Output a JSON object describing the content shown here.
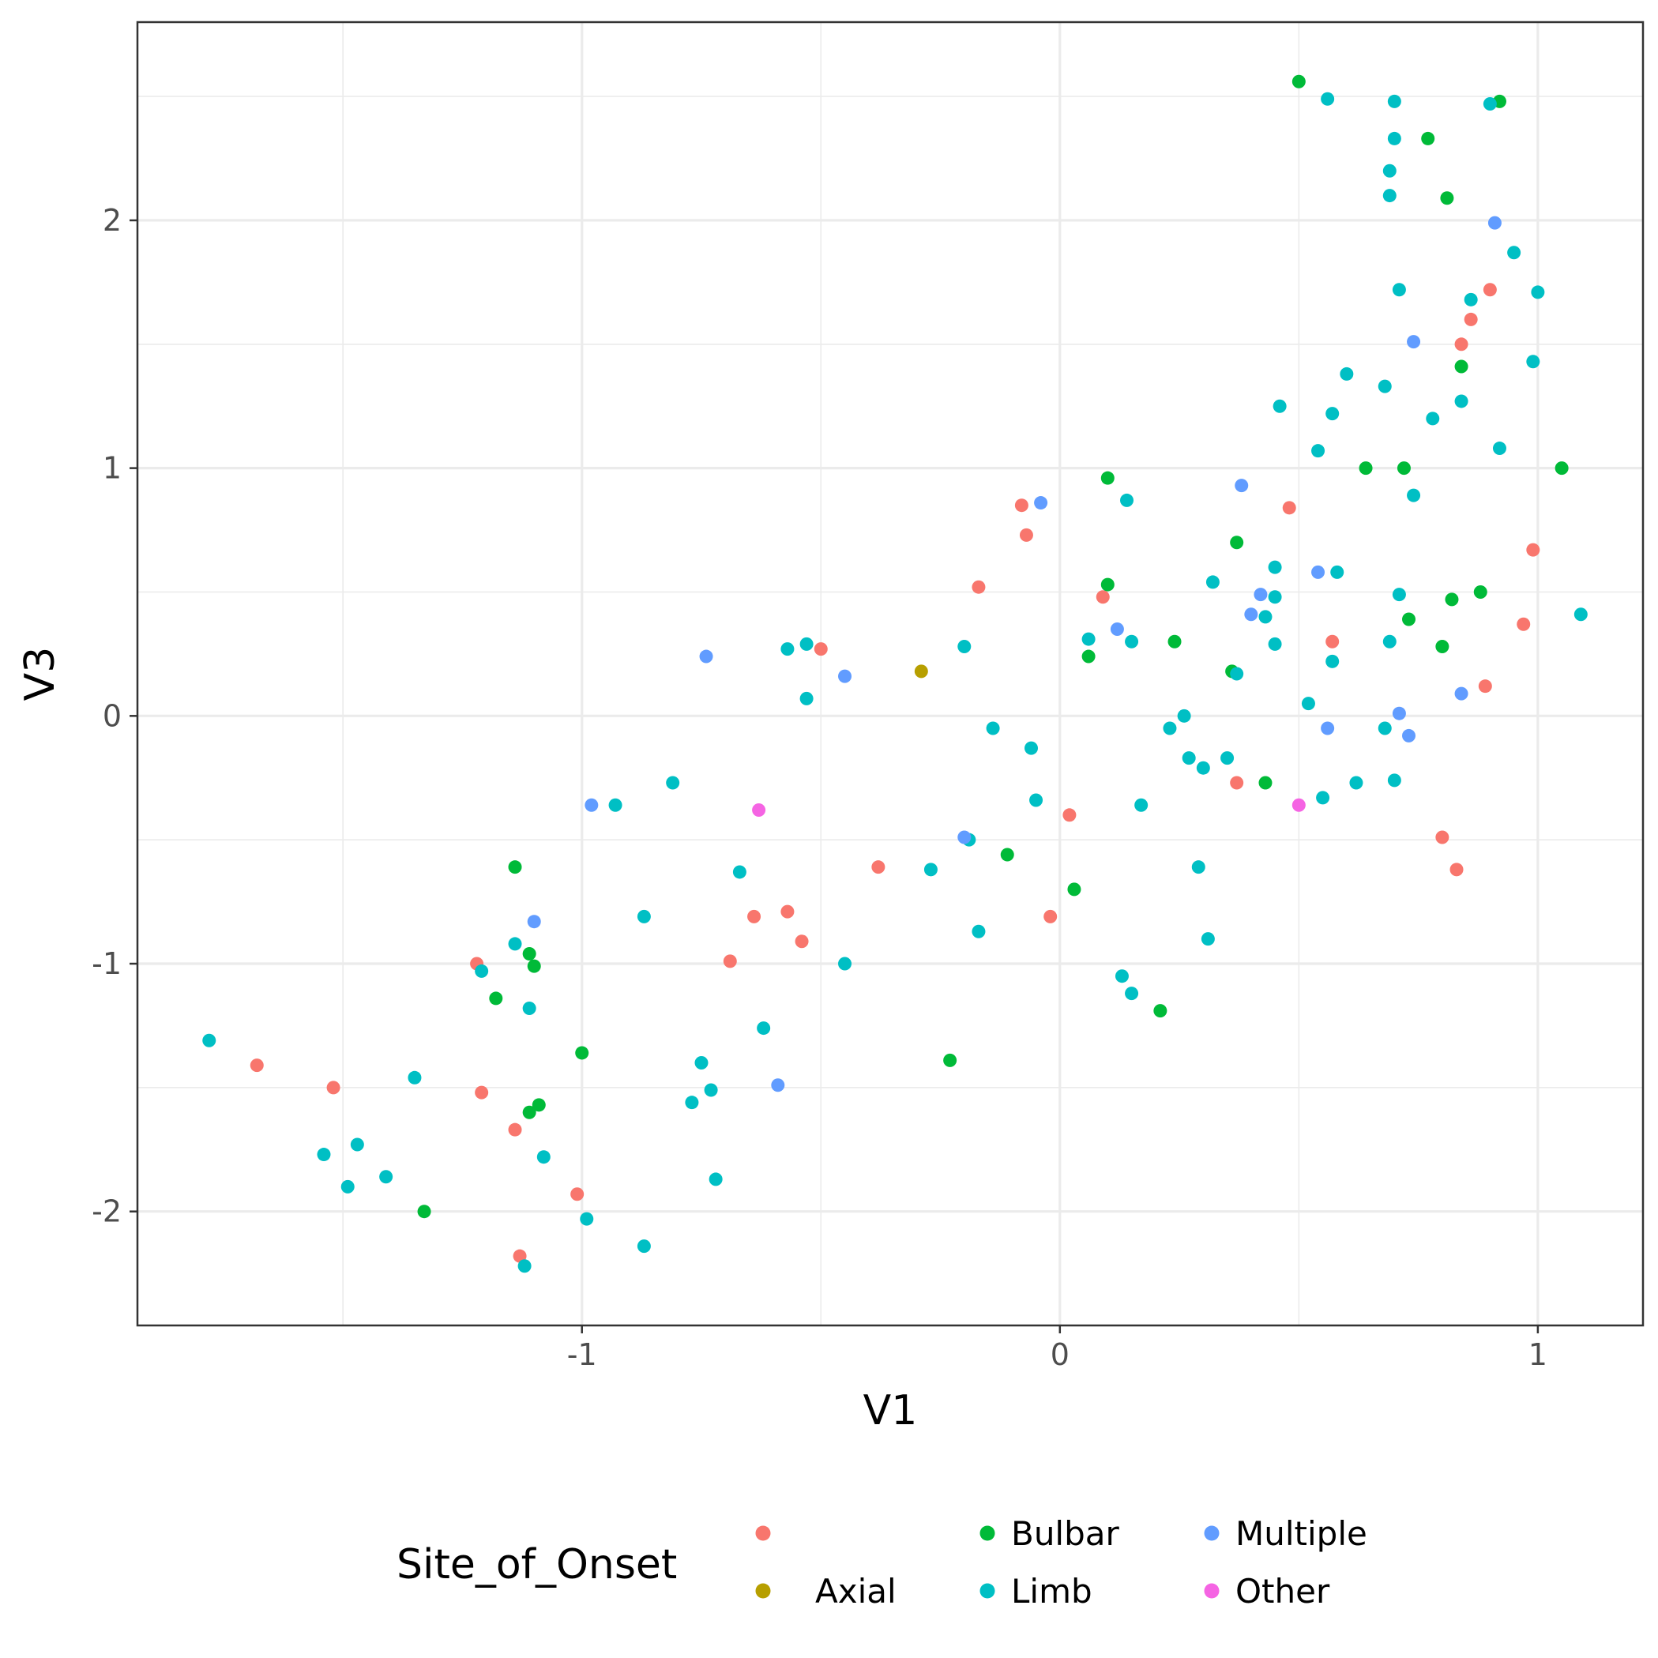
{
  "chart_data": {
    "type": "scatter",
    "xlabel": "V1",
    "ylabel": "V3",
    "xlim": [
      -1.93,
      1.22
    ],
    "ylim": [
      -2.46,
      2.8
    ],
    "x_ticks": [
      -1,
      0,
      1
    ],
    "x_tick_labels": [
      "-1",
      "0",
      "1"
    ],
    "y_ticks": [
      -2,
      -1,
      0,
      1,
      2
    ],
    "y_tick_labels": [
      "-2",
      "-1",
      "0",
      "1",
      "2"
    ],
    "grid": true,
    "legend": {
      "title": "Site_of_Onset",
      "placement": "bottom"
    },
    "series": [
      {
        "name": "",
        "color": "#F8766D",
        "points": [
          [
            -1.68,
            -1.41
          ],
          [
            -1.52,
            -1.5
          ],
          [
            -1.22,
            -1.0
          ],
          [
            -1.21,
            -1.52
          ],
          [
            -1.14,
            -1.67
          ],
          [
            -1.13,
            -2.18
          ],
          [
            -1.01,
            -1.93
          ],
          [
            -0.69,
            -0.99
          ],
          [
            -0.64,
            -0.81
          ],
          [
            -0.57,
            -0.79
          ],
          [
            -0.54,
            -0.91
          ],
          [
            -0.5,
            0.27
          ],
          [
            -0.38,
            -0.61
          ],
          [
            -0.17,
            0.52
          ],
          [
            -0.08,
            0.85
          ],
          [
            -0.07,
            0.73
          ],
          [
            -0.02,
            -0.81
          ],
          [
            0.02,
            -0.4
          ],
          [
            0.09,
            0.48
          ],
          [
            0.37,
            -0.27
          ],
          [
            0.48,
            0.84
          ],
          [
            0.57,
            0.3
          ],
          [
            0.8,
            -0.49
          ],
          [
            0.83,
            -0.62
          ],
          [
            0.84,
            1.5
          ],
          [
            0.86,
            1.6
          ],
          [
            0.89,
            0.12
          ],
          [
            0.9,
            1.72
          ],
          [
            0.97,
            0.37
          ],
          [
            0.99,
            0.67
          ]
        ]
      },
      {
        "name": "Axial",
        "color": "#B79F00",
        "points": [
          [
            -0.29,
            0.18
          ]
        ]
      },
      {
        "name": "Bulbar",
        "color": "#00BA38",
        "points": [
          [
            -1.33,
            -2.0
          ],
          [
            -1.18,
            -1.14
          ],
          [
            -1.14,
            -0.61
          ],
          [
            -1.11,
            -0.96
          ],
          [
            -1.1,
            -1.01
          ],
          [
            -1.11,
            -1.6
          ],
          [
            -1.09,
            -1.57
          ],
          [
            -1.0,
            -1.36
          ],
          [
            -0.23,
            -1.39
          ],
          [
            -0.11,
            -0.56
          ],
          [
            0.03,
            -0.7
          ],
          [
            0.06,
            0.24
          ],
          [
            0.1,
            0.53
          ],
          [
            0.1,
            0.96
          ],
          [
            0.21,
            -1.19
          ],
          [
            0.24,
            0.3
          ],
          [
            0.36,
            0.18
          ],
          [
            0.37,
            0.7
          ],
          [
            0.43,
            -0.27
          ],
          [
            0.5,
            2.56
          ],
          [
            0.64,
            1.0
          ],
          [
            0.72,
            1.0
          ],
          [
            0.73,
            0.39
          ],
          [
            0.77,
            2.33
          ],
          [
            0.8,
            0.28
          ],
          [
            0.81,
            2.09
          ],
          [
            0.82,
            0.47
          ],
          [
            0.84,
            1.41
          ],
          [
            0.88,
            0.5
          ],
          [
            0.92,
            2.48
          ],
          [
            1.05,
            1.0
          ]
        ]
      },
      {
        "name": "Limb",
        "color": "#00BFC4",
        "points": [
          [
            -1.78,
            -1.31
          ],
          [
            -1.54,
            -1.77
          ],
          [
            -1.49,
            -1.9
          ],
          [
            -1.47,
            -1.73
          ],
          [
            -1.41,
            -1.86
          ],
          [
            -1.35,
            -1.46
          ],
          [
            -1.21,
            -1.03
          ],
          [
            -1.14,
            -0.92
          ],
          [
            -1.12,
            -2.22
          ],
          [
            -1.11,
            -1.18
          ],
          [
            -1.08,
            -1.78
          ],
          [
            -0.99,
            -2.03
          ],
          [
            -0.93,
            -0.36
          ],
          [
            -0.87,
            -2.14
          ],
          [
            -0.87,
            -0.81
          ],
          [
            -0.81,
            -0.27
          ],
          [
            -0.77,
            -1.56
          ],
          [
            -0.75,
            -1.4
          ],
          [
            -0.73,
            -1.51
          ],
          [
            -0.72,
            -1.87
          ],
          [
            -0.67,
            -0.63
          ],
          [
            -0.62,
            -1.26
          ],
          [
            -0.57,
            0.27
          ],
          [
            -0.53,
            0.29
          ],
          [
            -0.53,
            0.07
          ],
          [
            -0.45,
            -1.0
          ],
          [
            -0.27,
            -0.62
          ],
          [
            -0.2,
            0.28
          ],
          [
            -0.19,
            -0.5
          ],
          [
            -0.17,
            -0.87
          ],
          [
            -0.14,
            -0.05
          ],
          [
            -0.06,
            -0.13
          ],
          [
            -0.05,
            -0.34
          ],
          [
            0.06,
            0.31
          ],
          [
            0.13,
            -1.05
          ],
          [
            0.14,
            0.87
          ],
          [
            0.15,
            0.3
          ],
          [
            0.15,
            -1.12
          ],
          [
            0.17,
            -0.36
          ],
          [
            0.23,
            -0.05
          ],
          [
            0.26,
            0.0
          ],
          [
            0.27,
            -0.17
          ],
          [
            0.29,
            -0.61
          ],
          [
            0.3,
            -0.21
          ],
          [
            0.31,
            -0.9
          ],
          [
            0.32,
            0.54
          ],
          [
            0.35,
            -0.17
          ],
          [
            0.37,
            0.17
          ],
          [
            0.43,
            0.4
          ],
          [
            0.45,
            0.6
          ],
          [
            0.45,
            0.48
          ],
          [
            0.45,
            0.29
          ],
          [
            0.46,
            1.25
          ],
          [
            0.52,
            0.05
          ],
          [
            0.54,
            1.07
          ],
          [
            0.55,
            -0.33
          ],
          [
            0.56,
            2.49
          ],
          [
            0.57,
            1.22
          ],
          [
            0.57,
            0.22
          ],
          [
            0.58,
            0.58
          ],
          [
            0.6,
            1.38
          ],
          [
            0.62,
            -0.27
          ],
          [
            0.68,
            1.33
          ],
          [
            0.68,
            -0.05
          ],
          [
            0.69,
            2.1
          ],
          [
            0.69,
            2.2
          ],
          [
            0.69,
            0.3
          ],
          [
            0.7,
            -0.26
          ],
          [
            0.7,
            2.33
          ],
          [
            0.7,
            2.48
          ],
          [
            0.71,
            0.49
          ],
          [
            0.71,
            1.72
          ],
          [
            0.74,
            0.89
          ],
          [
            0.78,
            1.2
          ],
          [
            0.84,
            1.27
          ],
          [
            0.86,
            1.68
          ],
          [
            0.9,
            2.47
          ],
          [
            0.92,
            1.08
          ],
          [
            0.95,
            1.87
          ],
          [
            0.99,
            1.43
          ],
          [
            1.0,
            1.71
          ],
          [
            1.09,
            0.41
          ]
        ]
      },
      {
        "name": "Multiple",
        "color": "#619CFF",
        "points": [
          [
            -1.1,
            -0.83
          ],
          [
            -0.98,
            -0.36
          ],
          [
            -0.74,
            0.24
          ],
          [
            -0.59,
            -1.49
          ],
          [
            -0.45,
            0.16
          ],
          [
            -0.2,
            -0.49
          ],
          [
            -0.04,
            0.86
          ],
          [
            0.12,
            0.35
          ],
          [
            0.38,
            0.93
          ],
          [
            0.4,
            0.41
          ],
          [
            0.42,
            0.49
          ],
          [
            0.54,
            0.58
          ],
          [
            0.56,
            -0.05
          ],
          [
            0.71,
            0.01
          ],
          [
            0.73,
            -0.08
          ],
          [
            0.74,
            1.51
          ],
          [
            0.84,
            0.09
          ],
          [
            0.91,
            1.99
          ]
        ]
      },
      {
        "name": "Other",
        "color": "#F564E3",
        "points": [
          [
            -0.63,
            -0.38
          ],
          [
            0.5,
            -0.36
          ]
        ]
      }
    ]
  }
}
